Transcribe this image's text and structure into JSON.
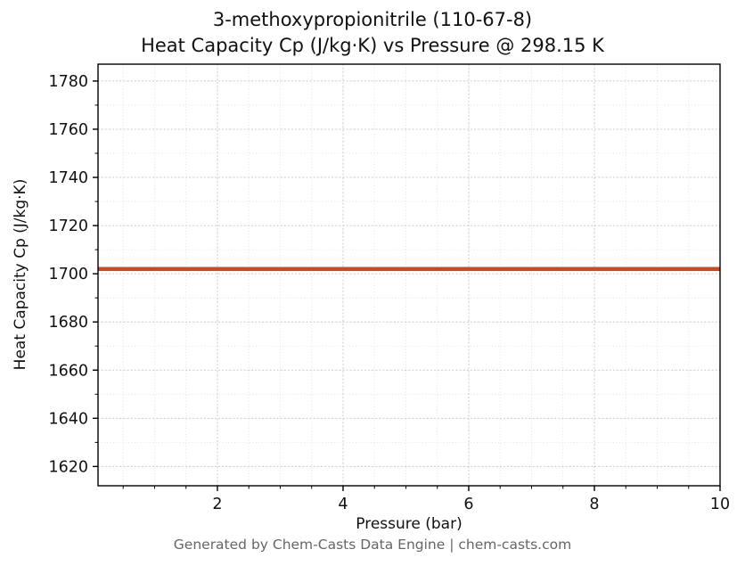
{
  "footer": {
    "text": "Generated by Chem-Casts Data Engine | chem-casts.com"
  },
  "chart_data": {
    "type": "line",
    "title": "3-methoxypropionitrile (110-67-8)",
    "subtitle": "Heat Capacity Cp (J/kg·K) vs Pressure @ 298.15 K",
    "xlabel": "Pressure (bar)",
    "ylabel": "Heat Capacity Cp (J/kg·K)",
    "xlim": [
      0.1,
      10
    ],
    "ylim": [
      1612,
      1787
    ],
    "xticks": [
      2,
      4,
      6,
      8,
      10
    ],
    "yticks": [
      1620,
      1640,
      1660,
      1680,
      1700,
      1720,
      1740,
      1760,
      1780
    ],
    "x_minor_step": 0.5,
    "y_minor_step": 10,
    "grid": {
      "visible": true,
      "style": "dotted",
      "minor": true
    },
    "legend": "none",
    "colors": {
      "line": "#cc4b1e",
      "grid_major": "#c4c4c4",
      "grid_minor": "#dcdcdc",
      "spine": "#000000"
    },
    "series": [
      {
        "name": "Heat Capacity Cp @ 298.15 K",
        "color": "#cc4b1e",
        "linewidth": 4.5,
        "x": [
          0.1,
          10
        ],
        "y": [
          1702,
          1702
        ]
      }
    ]
  }
}
